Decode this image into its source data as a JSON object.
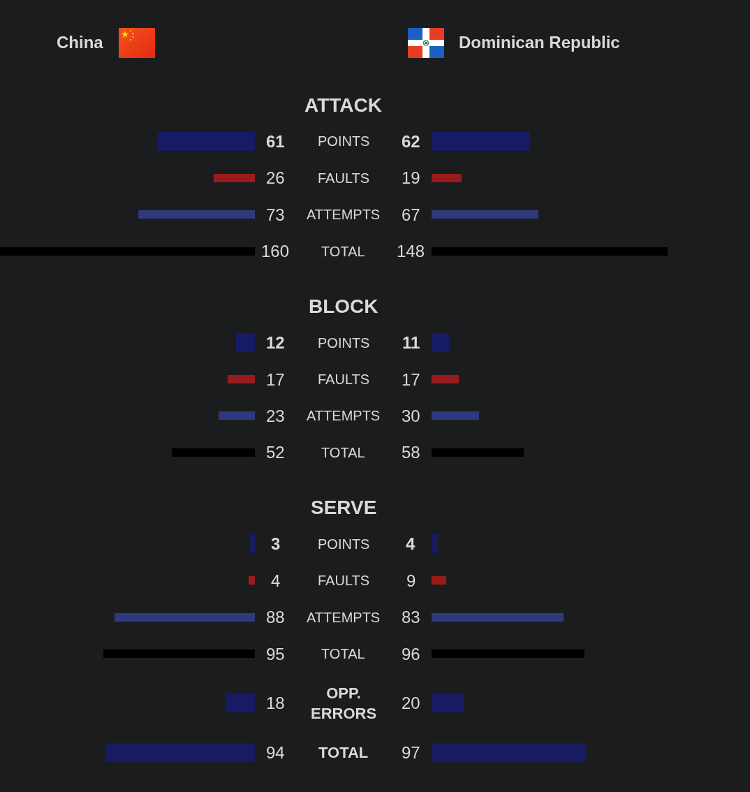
{
  "chart_data": [
    {
      "type": "bar",
      "orientation": "horizontal",
      "title": "China",
      "categories": [
        "ATTACK",
        "POINTS",
        "FAULTS",
        "ATTEMPTS",
        "TOTAL",
        "BLOCK",
        "POINTS",
        "FAULTS",
        "ATTEMPTS",
        "TOTAL",
        "SERVE",
        "POINTS",
        "FAULTS",
        "ATTEMPTS",
        "TOTAL",
        "OPP. ERRORS",
        "TOTAL"
      ],
      "values": [
        null,
        61,
        26,
        73,
        160,
        null,
        12,
        17,
        23,
        52,
        null,
        3,
        4,
        88,
        95,
        18,
        94
      ],
      "colors": [
        null,
        "#161b64",
        "#9a1b1b",
        "#2e3a7d",
        "#000000",
        null,
        "#161b64",
        "#9a1b1b",
        "#2e3a7d",
        "#000000",
        null,
        "#161b64",
        "#9a1b1b",
        "#2e3a7d",
        "#000000",
        "#161b64",
        "#161b64"
      ],
      "xlim": [
        160,
        0
      ],
      "data_labels": true,
      "tick_labels": "y"
    },
    {
      "type": "bar",
      "orientation": "horizontal",
      "title": "Dominican Republic",
      "categories": [
        null,
        null,
        null,
        null,
        null,
        null,
        null,
        null,
        null,
        null,
        null,
        null,
        null,
        null,
        null,
        null,
        null
      ],
      "values": [
        null,
        62,
        19,
        67,
        148,
        null,
        11,
        17,
        30,
        58,
        null,
        4,
        9,
        83,
        96,
        20,
        97
      ],
      "colors": [
        null,
        "#161b64",
        "#9a1b1b",
        "#2e3a7d",
        "#000000",
        null,
        "#161b64",
        "#9a1b1b",
        "#2e3a7d",
        "#000000",
        null,
        "#161b64",
        "#9a1b1b",
        "#2e3a7d",
        "#000000",
        "#161b64",
        "#161b64"
      ],
      "data_labels": true,
      "tick_labels": false
    }
  ]
}
